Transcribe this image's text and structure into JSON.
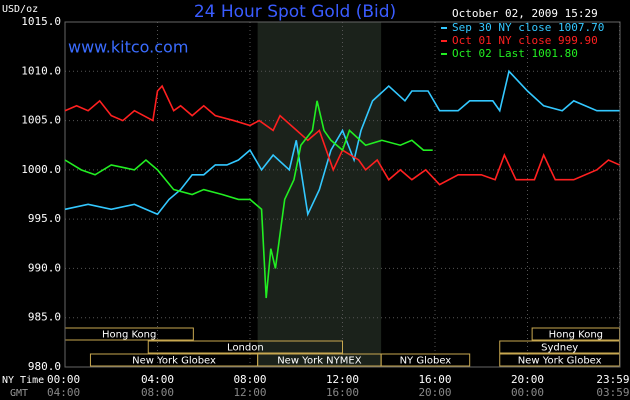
{
  "chart_data": {
    "type": "line",
    "title": "24 Hour Spot Gold (Bid)",
    "subtitle": "www.kitco.com",
    "timestamp": "October 02, 2009 15:29",
    "ylabel": "USD/oz",
    "xlabel_rows": [
      "NY Time",
      "GMT"
    ],
    "xlim": [
      0,
      24
    ],
    "ylim": [
      980,
      1015
    ],
    "yticks": [
      {
        "value": 980,
        "label": "980.0"
      },
      {
        "value": 985,
        "label": "985.0"
      },
      {
        "value": 990,
        "label": "990.0"
      },
      {
        "value": 995,
        "label": "995.0"
      },
      {
        "value": 1000,
        "label": "1000.0"
      },
      {
        "value": 1005,
        "label": "1005.0"
      },
      {
        "value": 1010,
        "label": "1010.0"
      },
      {
        "value": 1015,
        "label": "1015.0"
      }
    ],
    "xticks": [
      {
        "value": 0,
        "label": "00:00"
      },
      {
        "value": 4,
        "label": "04:00"
      },
      {
        "value": 8,
        "label": "08:00"
      },
      {
        "value": 12,
        "label": "12:00"
      },
      {
        "value": 16,
        "label": "16:00"
      },
      {
        "value": 20,
        "label": "20:00"
      },
      {
        "value": 23.98,
        "label": "23:59"
      }
    ],
    "x2ticks": [
      {
        "value": 0,
        "label": "04:00"
      },
      {
        "value": 4,
        "label": "08:00"
      },
      {
        "value": 8,
        "label": "12:00"
      },
      {
        "value": 12,
        "label": "16:00"
      },
      {
        "value": 16,
        "label": "20:00"
      },
      {
        "value": 20,
        "label": "00:00"
      },
      {
        "value": 23.98,
        "label": "03:59"
      }
    ],
    "grid": true,
    "shaded_range": [
      8.33,
      13.67
    ],
    "sessions": [
      {
        "name": "Hong Kong",
        "start": 0,
        "end": 5.55,
        "row": 0
      },
      {
        "name": "London",
        "start": 3.6,
        "end": 12,
        "row": 1
      },
      {
        "name": "New York Globex",
        "start": 1.1,
        "end": 8.33,
        "row": 2
      },
      {
        "name": "New York NYMEX",
        "start": 8.33,
        "end": 13.67,
        "row": 2
      },
      {
        "name": "NY Globex",
        "start": 13.67,
        "end": 17.5,
        "row": 2
      },
      {
        "name": "Hong Kong",
        "start": 20.2,
        "end": 23.98,
        "row": 0
      },
      {
        "name": "Sydney",
        "start": 18.8,
        "end": 23.98,
        "row": 1
      },
      {
        "name": "New York Globex",
        "start": 18.8,
        "end": 23.98,
        "row": 2
      }
    ],
    "series": [
      {
        "name": "Sep 30 NY close 1007.70",
        "color": "#33c8ff",
        "x": [
          0,
          1,
          2,
          3,
          4,
          4.5,
          5,
          5.5,
          6,
          6.5,
          7,
          7.5,
          8,
          8.5,
          9,
          9.7,
          10,
          10.5,
          11,
          11.5,
          12,
          12.5,
          12.8,
          13.3,
          14,
          14.7,
          15,
          15.7,
          16.2,
          17,
          17.5,
          18.5,
          18.8,
          19.2,
          19.6,
          20,
          20.7,
          21.5,
          22,
          23,
          23.98
        ],
        "values": [
          996,
          996.5,
          996,
          996.5,
          995.5,
          997,
          998,
          999.5,
          999.5,
          1000.5,
          1000.5,
          1001,
          1002,
          1000,
          1001.5,
          1000,
          1003,
          995.5,
          998,
          1002,
          1004,
          1001,
          1004,
          1007,
          1008.5,
          1007,
          1008,
          1008,
          1006,
          1006,
          1007,
          1007,
          1006,
          1010,
          1009,
          1008,
          1006.5,
          1006,
          1007,
          1006,
          1006
        ]
      },
      {
        "name": "Oct 01 NY close 999.90",
        "color": "#ff2020",
        "x": [
          0,
          0.5,
          1,
          1.5,
          2,
          2.5,
          3,
          3.8,
          4,
          4.2,
          4.7,
          5,
          5.5,
          6,
          6.5,
          7.3,
          8,
          8.4,
          9,
          9.3,
          10.5,
          11,
          11.6,
          12,
          12.7,
          13,
          13.5,
          14,
          14.5,
          15,
          15.6,
          16.2,
          17,
          18,
          18.6,
          19,
          19.5,
          20.3,
          20.7,
          21.2,
          22,
          23,
          23.5,
          23.98
        ],
        "values": [
          1006,
          1006.5,
          1006,
          1007,
          1005.5,
          1005,
          1006,
          1005,
          1008,
          1008.5,
          1006,
          1006.5,
          1005.5,
          1006.5,
          1005.5,
          1005,
          1004.5,
          1005,
          1004,
          1005.5,
          1003,
          1004,
          1000,
          1002,
          1001,
          1000,
          1001,
          999,
          1000,
          999,
          1000,
          998.5,
          999.5,
          999.5,
          999,
          1001.5,
          999,
          999,
          1001.5,
          999,
          999,
          1000,
          1001,
          1000.5
        ]
      },
      {
        "name": "Oct 02 Last 1001.80",
        "color": "#22ee22",
        "x": [
          0,
          0.7,
          1.3,
          2,
          3,
          3.5,
          4,
          4.7,
          5.5,
          6,
          6.8,
          7.5,
          8,
          8.5,
          8.7,
          8.9,
          9.1,
          9.5,
          9.9,
          10.2,
          10.7,
          10.9,
          11.2,
          11.5,
          12,
          12.3,
          13,
          13.7,
          14.5,
          15,
          15.5,
          15.9
        ],
        "values": [
          1001,
          1000,
          999.5,
          1000.5,
          1000,
          1001,
          1000,
          998,
          997.5,
          998,
          997.5,
          997,
          997,
          996,
          987,
          992,
          990,
          997,
          999,
          1002.5,
          1004,
          1007,
          1004,
          1003,
          1002,
          1004,
          1002.5,
          1003,
          1002.5,
          1003,
          1002,
          1002
        ]
      }
    ]
  }
}
